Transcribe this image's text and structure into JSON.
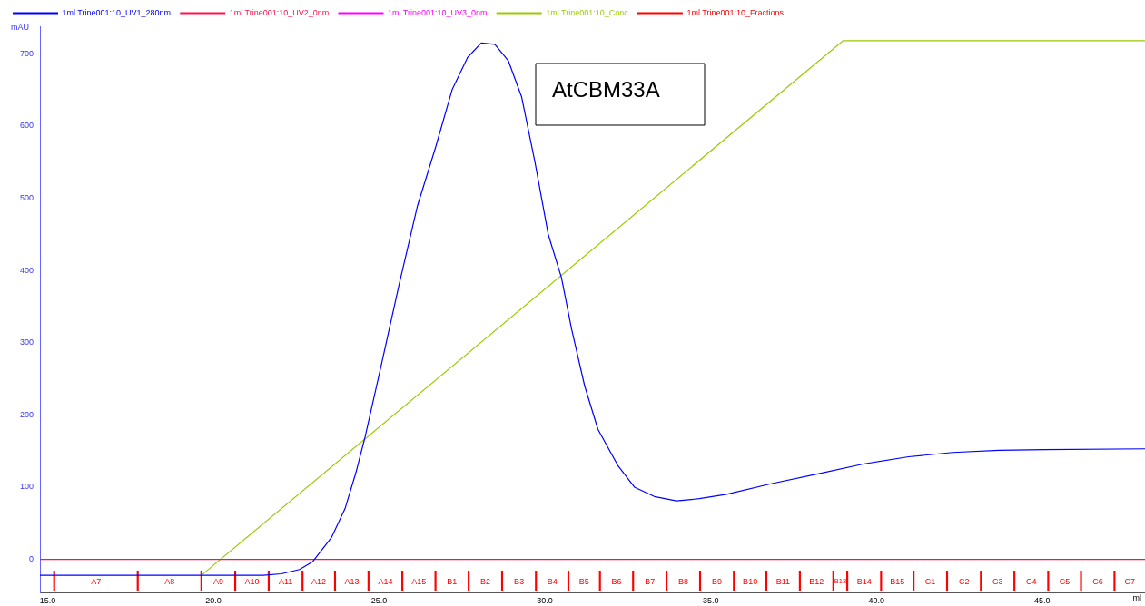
{
  "chart_data": {
    "type": "line",
    "xlabel": "ml",
    "ylabel": "mAU",
    "xlim": [
      14.77,
      48.1
    ],
    "ylim": [
      -46,
      738
    ],
    "xticks": [
      {
        "value": 15,
        "label": "15.0"
      },
      {
        "value": 20,
        "label": "20.0"
      },
      {
        "value": 25,
        "label": "25.0"
      },
      {
        "value": 30,
        "label": "30.0"
      },
      {
        "value": 35,
        "label": "35.0"
      },
      {
        "value": 40,
        "label": "40.0"
      },
      {
        "value": 45,
        "label": "45.0"
      }
    ],
    "yticks": [
      0,
      100,
      200,
      300,
      400,
      500,
      600,
      700
    ],
    "grid": false,
    "legend": "top",
    "line_style": "solid",
    "marker": "none",
    "series": [
      {
        "name": "1ml Trine001:10_UV1_280nm",
        "color": "#0000ff",
        "x": [
          14.77,
          15.2,
          21.5,
          22.05,
          22.6,
          23.0,
          23.56,
          23.97,
          24.3,
          24.58,
          25.07,
          25.6,
          26.16,
          26.7,
          27.2,
          27.67,
          28.08,
          28.49,
          28.9,
          29.3,
          29.7,
          30.1,
          30.5,
          30.8,
          31.2,
          31.6,
          32.2,
          32.7,
          33.3,
          33.97,
          34.66,
          35.48,
          36.85,
          38.2,
          39.6,
          40.97,
          42.3,
          43.7,
          45.07,
          48.1
        ],
        "values": [
          -22,
          -22,
          -22,
          -20,
          -14,
          -3,
          30,
          70,
          120,
          170,
          270,
          380,
          490,
          570,
          650,
          695,
          715,
          713,
          690,
          640,
          550,
          450,
          390,
          320,
          240,
          180,
          130,
          100,
          87,
          81,
          84,
          90,
          105,
          118,
          132,
          142,
          148,
          151,
          152,
          153
        ]
      },
      {
        "name": "1ml Trine001:10_UV2_0nm",
        "color": "#ff1050",
        "x": [
          14.77,
          48.1
        ],
        "values": [
          0,
          0
        ]
      },
      {
        "name": "1ml Trine001:10_UV3_0nm",
        "color": "#ff00ff"
      },
      {
        "name": "1ml Trine001:10_Conc",
        "color": "#99cc00",
        "x": [
          19.64,
          38.99,
          48.1
        ],
        "values": [
          -22,
          718,
          718
        ]
      },
      {
        "name": "1ml Trine001:10_Fractions",
        "color": "#ff0000",
        "type": "bar",
        "x": [
          15.2,
          17.72,
          19.64,
          20.66,
          21.67,
          22.69,
          23.67,
          24.68,
          25.7,
          26.7,
          27.7,
          28.71,
          29.73,
          30.71,
          31.66,
          32.66,
          33.67,
          34.68,
          35.7,
          36.68,
          37.69,
          38.7,
          39.12,
          40.14,
          41.12,
          42.13,
          43.15,
          44.16,
          45.18,
          46.17,
          47.18
        ],
        "values": [
          28,
          28,
          28,
          28,
          28,
          28,
          28,
          28,
          28,
          28,
          28,
          28,
          28,
          28,
          28,
          28,
          28,
          28,
          28,
          28,
          28,
          28,
          28,
          28,
          28,
          28,
          28,
          28,
          28,
          28,
          28
        ],
        "base": [
          -44,
          -44,
          -44,
          -44,
          -44,
          -44,
          -44,
          -44,
          -44,
          -44,
          -44,
          -44,
          -44,
          -44,
          -44,
          -44,
          -44,
          -44,
          -44,
          -44,
          -44,
          -44,
          -44,
          -44,
          -44,
          -44,
          -44,
          -44,
          -44,
          -44,
          -44
        ]
      }
    ],
    "annotations": [
      "AtCBM33A",
      "A7",
      "A8",
      "A9",
      "A10",
      "A11",
      "A12",
      "A13",
      "A14",
      "A15",
      "B1",
      "B2",
      "B3",
      "B4",
      "B5",
      "B6",
      "B7",
      "B8",
      "B9",
      "B10",
      "B11",
      "B12",
      "B13",
      "B14",
      "B15",
      "C1",
      "C2",
      "C3",
      "C4",
      "C5",
      "C6",
      "C7"
    ]
  }
}
